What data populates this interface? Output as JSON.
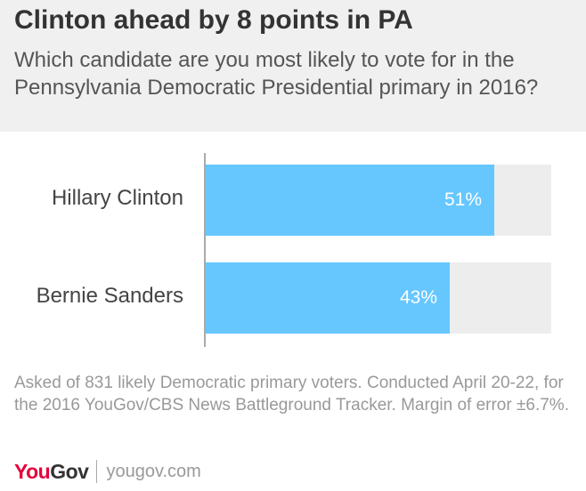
{
  "header": {
    "title": "Clinton ahead by 8 points in PA",
    "subtitle": "Which candidate are you most likely to vote for in the Pennsylvania Democratic Presidential primary in 2016?"
  },
  "chart_data": {
    "type": "bar",
    "orientation": "horizontal",
    "title": "Clinton ahead by 8 points in PA",
    "subtitle": "Which candidate are you most likely to vote for in the Pennsylvania Democratic Presidential primary in 2016?",
    "categories": [
      "Hillary Clinton",
      "Bernie Sanders"
    ],
    "values": [
      51,
      43
    ],
    "value_labels": [
      "51%",
      "43%"
    ],
    "xlim": [
      0,
      61
    ],
    "bar_color": "#66c7ff",
    "track_color": "#ededed",
    "grid": false
  },
  "note": {
    "text": "Asked of 831 likely Democratic primary voters. Conducted April 20-22, for the 2016 YouGov/CBS News Battleground Tracker. Margin of error ±6.7%."
  },
  "footer": {
    "logo_you": "You",
    "logo_gov": "Gov",
    "site": "yougov.com",
    "logo_color": "#e4003b"
  }
}
